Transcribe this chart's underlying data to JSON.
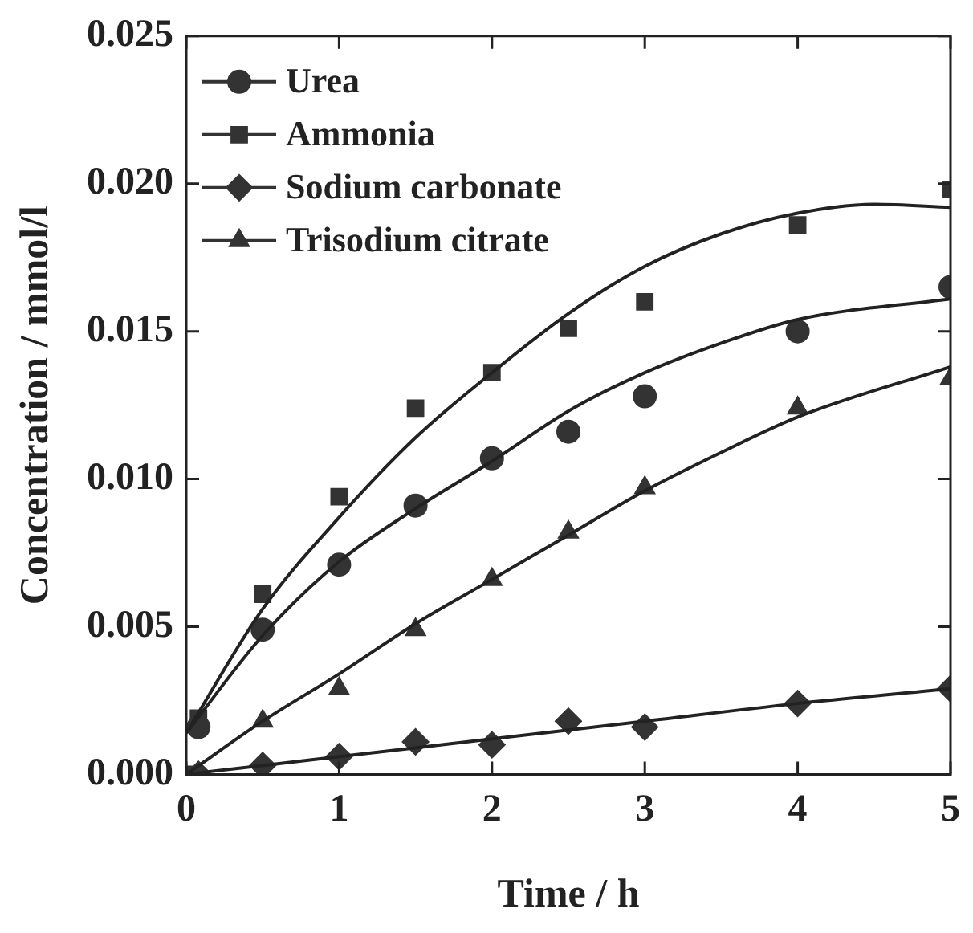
{
  "chart_data": {
    "type": "scatter",
    "xlabel": "Time / h",
    "ylabel": "Concentration / mmol/l",
    "xlim": [
      0,
      5
    ],
    "xticks": [
      0,
      1,
      2,
      3,
      4,
      5
    ],
    "ylim": [
      0,
      0.025
    ],
    "yticks": [
      {
        "value": 0,
        "label": "0.000"
      },
      0.005,
      {
        "value": 0.01,
        "label": "0.010"
      },
      0.015,
      {
        "value": 0.02,
        "label": "0.020"
      },
      0.025
    ],
    "grid": false,
    "legend": "top left",
    "series": [
      {
        "name": "Urea",
        "color": "#333333",
        "marker": "circle",
        "x": [
          0.08,
          0.5,
          1,
          1.5,
          2,
          2.5,
          3,
          4,
          5
        ],
        "values": [
          0.0016,
          0.0049,
          0.0071,
          0.0091,
          0.0107,
          0.0116,
          0.0128,
          0.015,
          0.0165
        ]
      },
      {
        "name": "Ammonia",
        "color": "#333333",
        "marker": "square",
        "x": [
          0,
          0.08,
          0.5,
          1,
          1.5,
          2,
          2.5,
          3,
          4,
          5
        ],
        "values": [
          0,
          0.0019,
          0.0061,
          0.0094,
          0.0124,
          0.0136,
          0.0151,
          0.016,
          0.0186,
          0.0198
        ]
      },
      {
        "name": "Sodium carbonate",
        "color": "#333333",
        "marker": "diamond",
        "x": [
          0.08,
          0.5,
          1,
          1.5,
          2,
          2.5,
          3,
          4,
          5
        ],
        "values": [
          0,
          0.0003,
          0.0006,
          0.0011,
          0.001,
          0.0018,
          0.0016,
          0.0024,
          0.0029
        ]
      },
      {
        "name": "Trisodium citrate",
        "color": "#333333",
        "marker": "triangle",
        "x": [
          0.5,
          1,
          1.5,
          2,
          2.5,
          3,
          4,
          5
        ],
        "values": [
          0.0018,
          0.0029,
          0.0049,
          0.0066,
          0.0082,
          0.0097,
          0.0124,
          0.0134
        ]
      },
      {
        "type": "line",
        "color": "#222222",
        "marker": "none",
        "x": [
          0,
          0.5,
          1,
          1.5,
          2,
          2.5,
          3,
          3.5,
          4,
          5
        ],
        "values": [
          0.0014,
          0.0047,
          0.0072,
          0.009,
          0.0106,
          0.0123,
          0.0136,
          0.0146,
          0.0154,
          0.0161
        ]
      },
      {
        "type": "line",
        "color": "#222222",
        "marker": "none",
        "x": [
          0,
          0.5,
          1,
          1.5,
          2,
          2.5,
          3,
          3.5,
          4,
          4.5,
          5
        ],
        "values": [
          0.0014,
          0.0056,
          0.0087,
          0.0114,
          0.0136,
          0.0156,
          0.0172,
          0.0183,
          0.019,
          0.0193,
          0.0192
        ]
      },
      {
        "type": "line",
        "color": "#222222",
        "marker": "none",
        "x": [
          0,
          1,
          2,
          3,
          4,
          5
        ],
        "values": [
          0,
          0.0006,
          0.0012,
          0.0018,
          0.0024,
          0.0029
        ]
      },
      {
        "type": "line",
        "color": "#222222",
        "marker": "none",
        "x": [
          0,
          0.5,
          1,
          1.5,
          2,
          2.5,
          3,
          3.5,
          4,
          5
        ],
        "values": [
          0,
          0.0018,
          0.0034,
          0.0051,
          0.0066,
          0.0081,
          0.0096,
          0.0109,
          0.0121,
          0.0138
        ]
      }
    ]
  }
}
